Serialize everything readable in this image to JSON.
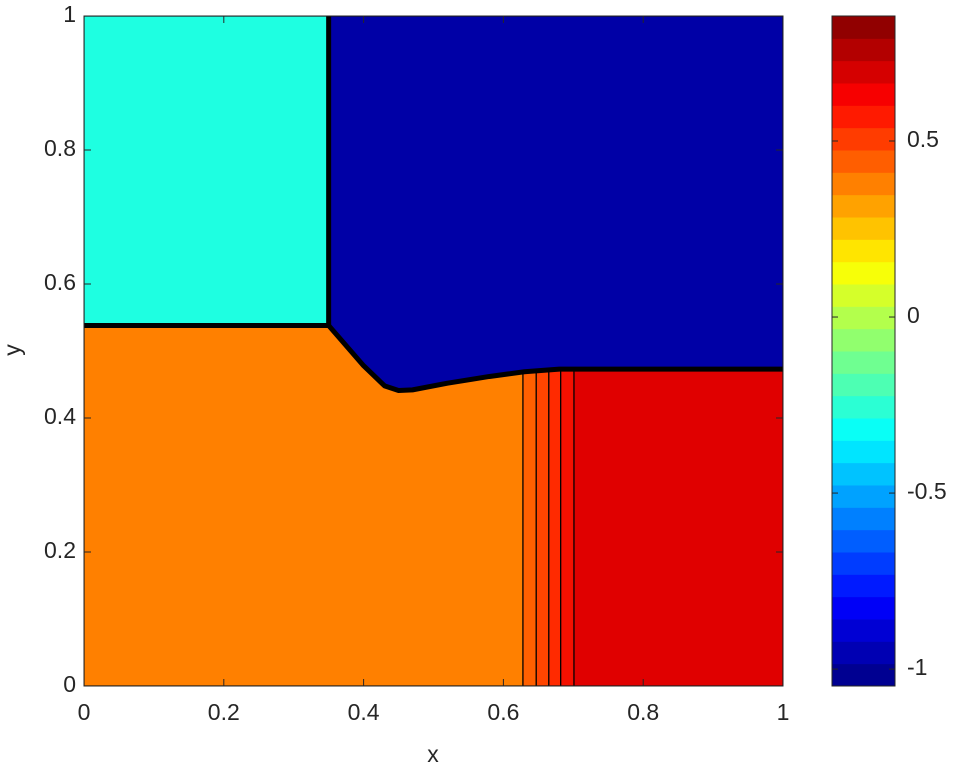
{
  "chart_data": {
    "type": "contour",
    "xlabel": "x",
    "ylabel": "y",
    "xlim": [
      0,
      1
    ],
    "ylim": [
      0,
      1
    ],
    "xticks": [
      0,
      0.2,
      0.4,
      0.6,
      0.8,
      1
    ],
    "yticks": [
      0,
      0.2,
      0.4,
      0.6,
      0.8,
      1
    ],
    "clim": [
      -1.048,
      0.855
    ],
    "cticks": [
      -1,
      -0.5,
      0,
      0.5
    ],
    "colorbar_levels": 30,
    "regions": [
      {
        "value": -0.35,
        "color": "#1effe1",
        "x": [
          0,
          0.35,
          0.35,
          0
        ],
        "y": [
          0.538,
          0.538,
          1,
          1
        ]
      },
      {
        "value": -1.0,
        "color": "#0000a6",
        "x": [
          0.35,
          1,
          1,
          0.68,
          0.63,
          0.58,
          0.52,
          0.47,
          0.45,
          0.43,
          0.4,
          0.35
        ],
        "y": [
          1,
          1,
          0.473,
          0.473,
          0.469,
          0.462,
          0.452,
          0.442,
          0.441,
          0.448,
          0.478,
          0.538
        ]
      },
      {
        "value": 0.55,
        "color": "#ff8000",
        "x": [
          0,
          0.628,
          0.628,
          0.58,
          0.52,
          0.47,
          0.45,
          0.43,
          0.4,
          0.35,
          0
        ],
        "y": [
          0,
          0,
          0.469,
          0.462,
          0.452,
          0.442,
          0.441,
          0.448,
          0.478,
          0.538,
          0.538
        ]
      },
      {
        "value": 0.6,
        "color": "#ff6000",
        "x": [
          0.628,
          0.647,
          0.647,
          0.628
        ],
        "y": [
          0,
          0,
          0.471,
          0.469
        ]
      },
      {
        "value": 0.65,
        "color": "#ff4500",
        "x": [
          0.647,
          0.665,
          0.665,
          0.647
        ],
        "y": [
          0,
          0,
          0.472,
          0.471
        ]
      },
      {
        "value": 0.7,
        "color": "#ff2a00",
        "x": [
          0.665,
          0.682,
          0.682,
          0.665
        ],
        "y": [
          0,
          0,
          0.473,
          0.472
        ]
      },
      {
        "value": 0.75,
        "color": "#f51000",
        "x": [
          0.682,
          0.701,
          0.701,
          0.682
        ],
        "y": [
          0,
          0,
          0.473,
          0.473
        ]
      },
      {
        "value": 0.8,
        "color": "#e00000",
        "x": [
          0.701,
          1,
          1,
          0.701
        ],
        "y": [
          0,
          0,
          0.473,
          0.473
        ]
      }
    ],
    "fronts": [
      {
        "x": [
          0,
          0.35,
          0.35
        ],
        "y": [
          0.538,
          0.538,
          1
        ]
      },
      {
        "x": [
          0.35,
          0.4,
          0.43,
          0.45,
          0.47,
          0.52,
          0.58,
          0.63,
          0.68,
          1
        ],
        "y": [
          0.538,
          0.478,
          0.448,
          0.441,
          0.442,
          0.452,
          0.462,
          0.469,
          0.473,
          0.473
        ]
      }
    ]
  }
}
